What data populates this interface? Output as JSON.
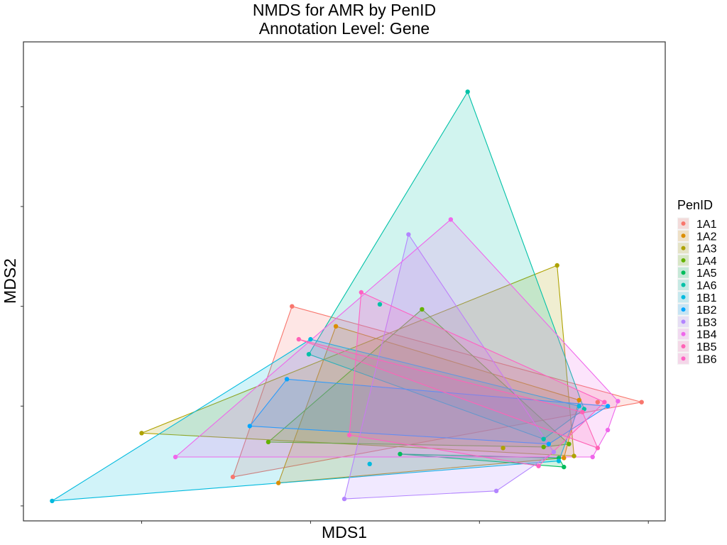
{
  "chart_data": {
    "type": "scatter",
    "title": "NMDS for AMR by PenID",
    "subtitle": "Annotation Level: Gene",
    "xlabel": "MDS1",
    "ylabel": "MDS2",
    "xlim": [
      -1.7,
      2.1
    ],
    "ylim": [
      -1.15,
      3.65
    ],
    "x_ticks": [
      -1.0,
      0.0,
      1.0,
      2.0
    ],
    "y_ticks": [
      -1.0,
      0.0,
      1.0,
      2.0,
      3.0
    ],
    "tick_labels_visible": false,
    "grid": false,
    "legend": {
      "title": "PenID",
      "position": "right"
    },
    "hull_fill_opacity": 0.18,
    "series": [
      {
        "name": "1A1",
        "color": "#F8766D",
        "points": [
          [
            -0.11,
            1.0
          ],
          [
            -0.46,
            -0.71
          ],
          [
            1.96,
            0.04
          ],
          [
            1.7,
            0.04
          ]
        ]
      },
      {
        "name": "1A2",
        "color": "#DB8E00",
        "points": [
          [
            0.15,
            0.8
          ],
          [
            -0.19,
            -0.77
          ],
          [
            1.5,
            -0.52
          ],
          [
            1.59,
            0.06
          ]
        ]
      },
      {
        "name": "1A3",
        "color": "#AEA200",
        "points": [
          [
            -1.0,
            -0.27
          ],
          [
            1.46,
            1.41
          ],
          [
            1.56,
            -0.5
          ],
          [
            1.14,
            -0.42
          ]
        ]
      },
      {
        "name": "1A4",
        "color": "#64B200",
        "points": [
          [
            -0.25,
            -0.36
          ],
          [
            0.66,
            0.97
          ],
          [
            1.53,
            -0.38
          ],
          [
            1.38,
            -0.41
          ]
        ]
      },
      {
        "name": "1A5",
        "color": "#00BD5C",
        "points": [
          [
            1.5,
            -0.61
          ],
          [
            1.47,
            -0.52
          ],
          [
            0.53,
            -0.48
          ]
        ]
      },
      {
        "name": "1A6",
        "color": "#00C1A7",
        "points": [
          [
            0.93,
            3.15
          ],
          [
            1.62,
            -0.03
          ],
          [
            1.38,
            -0.33
          ],
          [
            0.41,
            1.02
          ],
          [
            -0.01,
            0.52
          ]
        ]
      },
      {
        "name": "1B1",
        "color": "#00BADE",
        "points": [
          [
            -1.53,
            -0.95
          ],
          [
            0.0,
            0.67
          ],
          [
            1.47,
            -0.55
          ],
          [
            1.59,
            0.0
          ],
          [
            0.35,
            -0.58
          ]
        ]
      },
      {
        "name": "1B2",
        "color": "#00A6FF",
        "points": [
          [
            -0.14,
            0.27
          ],
          [
            1.76,
            0.0
          ],
          [
            1.41,
            -0.38
          ],
          [
            -0.36,
            -0.2
          ]
        ]
      },
      {
        "name": "1B3",
        "color": "#B385FF",
        "points": [
          [
            0.58,
            1.72
          ],
          [
            1.1,
            -0.85
          ],
          [
            0.2,
            -0.93
          ],
          [
            1.44,
            -0.46
          ]
        ]
      },
      {
        "name": "1B4",
        "color": "#EF67EB",
        "points": [
          [
            0.83,
            1.87
          ],
          [
            1.76,
            -0.24
          ],
          [
            1.67,
            -0.51
          ],
          [
            -0.8,
            -0.51
          ],
          [
            1.82,
            0.05
          ]
        ]
      },
      {
        "name": "1B5",
        "color": "#FF63B6",
        "points": [
          [
            -0.07,
            0.67
          ],
          [
            1.7,
            -0.42
          ],
          [
            1.61,
            -0.06
          ]
        ]
      },
      {
        "name": "1B6",
        "color": "#FF61C3",
        "points": [
          [
            0.3,
            1.14
          ],
          [
            0.23,
            -0.29
          ],
          [
            1.35,
            -0.6
          ],
          [
            1.74,
            0.04
          ]
        ]
      }
    ]
  }
}
